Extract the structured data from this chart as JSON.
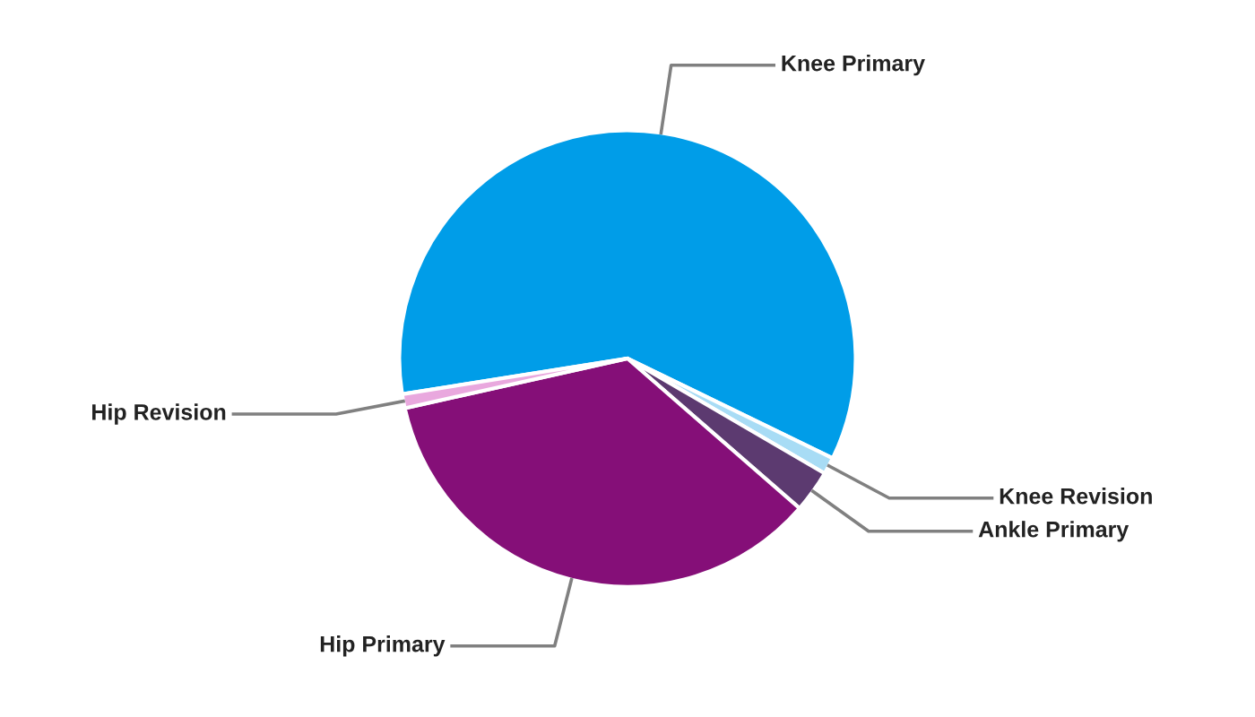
{
  "chart_data": {
    "type": "pie",
    "categories": [
      "Knee Primary",
      "Knee Revision",
      "Ankle Primary",
      "Hip Primary",
      "Hip Revision"
    ],
    "values": [
      59.7,
      1.2,
      3.0,
      35.1,
      1.0
    ],
    "colors": [
      "#009de8",
      "#a8dcf5",
      "#5c3a70",
      "#850f78",
      "#e9a8de"
    ]
  }
}
